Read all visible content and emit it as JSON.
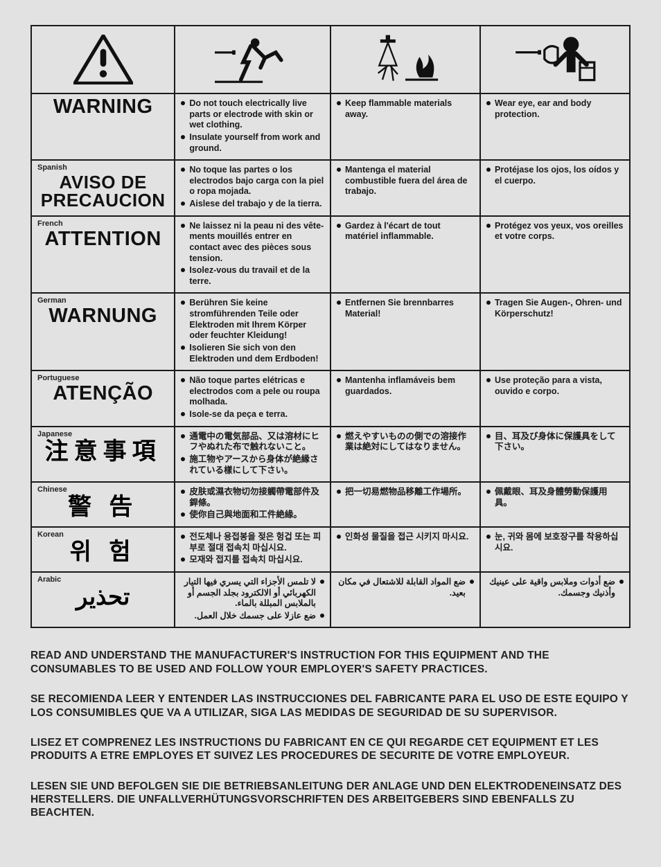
{
  "icons": [
    "alert-triangle",
    "runner-shock",
    "fire-sparks",
    "ppe-goggles"
  ],
  "rows": [
    {
      "lang_tag": "",
      "word": "WARNING",
      "word_class": "big-word",
      "c1": [
        "Do not touch electrically live parts or electrode with skin or wet clothing.",
        "Insulate yourself from work and ground."
      ],
      "c2": [
        "Keep flammable materials away."
      ],
      "c3": [
        "Wear eye, ear and body protection."
      ]
    },
    {
      "lang_tag": "Spanish",
      "word": "AVISO DE PRECAUCION",
      "word_class": "big-word sm",
      "c1": [
        "No toque las partes o los electrodos bajo carga con la piel o ropa moja­da.",
        "Aislese del trabajo y de la tierra."
      ],
      "c2": [
        "Mantenga el material combustible fuera del área de trabajo."
      ],
      "c3": [
        "Protéjase los ojos, los oídos y el cuerpo."
      ]
    },
    {
      "lang_tag": "French",
      "word": "ATTENTION",
      "word_class": "big-word",
      "c1": [
        "Ne laissez ni la peau ni des vête­ments mouillés entrer en contact avec des pièces sous tension.",
        "Isolez-vous du travail et de la terre."
      ],
      "c2": [
        "Gardez à l'écart de tout matériel inflammable."
      ],
      "c3": [
        "Protégez vos yeux, vos oreilles et votre corps."
      ]
    },
    {
      "lang_tag": "German",
      "word": "WARNUNG",
      "word_class": "big-word",
      "c1": [
        "Berühren Sie keine stromführenden Teile oder Elektroden mit Ihrem Körper oder feuchter Kleidung!",
        "Isolieren Sie sich von den Elektroden und dem Erdboden!"
      ],
      "c2": [
        "Entfernen Sie brennbarres Material!"
      ],
      "c3": [
        "Tragen Sie Augen-, Ohren- und Kör­perschutz!"
      ]
    },
    {
      "lang_tag": "Portuguese",
      "word": "ATENÇÃO",
      "word_class": "big-word",
      "c1": [
        "Não toque partes elétricas e elec­trodos com a pele ou roupa molha­da.",
        "Isole-se da peça e terra."
      ],
      "c2": [
        "Mantenha inflamáveis bem guarda­dos."
      ],
      "c3": [
        "Use proteção para a vista, ouvido e corpo."
      ]
    },
    {
      "lang_tag": "Japanese",
      "word": "注意事項",
      "word_class": "cjk-big",
      "c1": [
        "通電中の電気部品、又は溶材にヒフやぬれた布で触れないこと。",
        "施工物やアースから身体が絶縁されている樣にして下さい。"
      ],
      "c2": [
        "燃えやすいものの側での溶接作業は絶対にしてはなりません。"
      ],
      "c3": [
        "目、耳及び身体に保護具をして下さい。"
      ]
    },
    {
      "lang_tag": "Chinese",
      "word": "警  告",
      "word_class": "cjk-big",
      "c1": [
        "皮肤或濕衣物切勿接觸帶電部件及銲條。",
        "使你自己與地面和工件絶緣。"
      ],
      "c2": [
        "把一切易燃物品移離工作場所。"
      ],
      "c3": [
        "佩戴眼、耳及身體勞動保護用具。"
      ]
    },
    {
      "lang_tag": "Korean",
      "word": "위  험",
      "word_class": "cjk-big",
      "c1": [
        "전도체나 용접봉을 젖은 헝겁 또는 피부로 절대 접속치 마십시요.",
        "모재와 접지를 접속치 마십시요."
      ],
      "c2": [
        "인화성 물질을 접근 시키지 마시요."
      ],
      "c3": [
        "눈, 귀와 몸에 보호장구를 착용하십시요."
      ]
    },
    {
      "lang_tag": "Arabic",
      "word": "تحذير",
      "word_class": "cjk-big",
      "rtl": true,
      "c1": [
        "لا تلمس الأجزاء التي يسري فيها التيار الكهربائي أو الالكترود بجلد الجسم أو بالملابس المبللة بالماء.",
        "ضع عازلا على جسمك خلال العمل."
      ],
      "c2": [
        "ضع المواد القابلة للاشتعال في مكان بعيد."
      ],
      "c3": [
        "ضع أدوات وملابس واقية على عينيك وأذنيك وجسمك."
      ]
    }
  ],
  "footer": [
    "READ AND UNDERSTAND THE MANUFACTURER'S INSTRUCTION FOR THIS EQUIPMENT AND THE CONSUMABLES TO BE USED AND FOLLOW YOUR EMPLOYER'S SAFETY PRACTICES.",
    "SE RECOMIENDA LEER Y ENTENDER LAS INSTRUCCIONES DEL FABRICANTE PARA EL USO DE ESTE EQUIPO Y LOS CONSUMIBLES QUE VA A UTILIZAR, SIGA LAS MEDIDAS DE SEGURIDAD DE SU SUPERVISOR.",
    "LISEZ ET COMPRENEZ LES INSTRUCTIONS DU FABRICANT EN CE QUI REGARDE CET EQUIPMENT ET LES PRODUITS A ETRE EMPLOYES ET SUIVEZ LES PROCEDURES DE SECURITE DE VOTRE EMPLOYEUR.",
    "LESEN SIE UND BEFOLGEN SIE DIE BETRIEBSANLEITUNG DER ANLAGE UND DEN ELEKTRODENEINSATZ DES HER­STELLERS. DIE UNFALLVERHÜTUNGSVORSCHRIFTEN DES ARBEITGEBERS SIND EBENFALLS ZU BEACHTEN."
  ]
}
